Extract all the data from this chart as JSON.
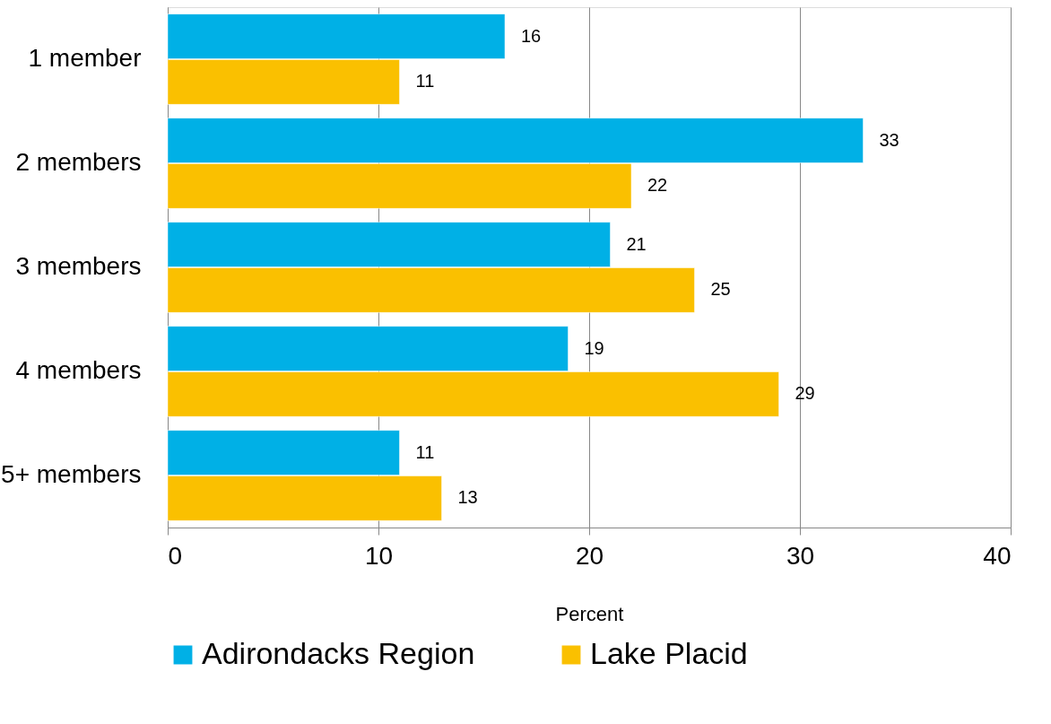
{
  "chart_data": {
    "type": "bar",
    "orientation": "horizontal",
    "xlabel": "Percent",
    "categories": [
      "1 member",
      "2 members",
      "3 members",
      "4 members",
      "5+ members"
    ],
    "series": [
      {
        "name": "Adirondacks Region",
        "color": "#00b0e6",
        "values": [
          16,
          33,
          21,
          19,
          11
        ]
      },
      {
        "name": "Lake Placid",
        "color": "#fac000",
        "values": [
          11,
          22,
          25,
          29,
          13
        ]
      }
    ],
    "xlim": [
      0,
      40
    ],
    "xticks": [
      0,
      10,
      20,
      30,
      40
    ],
    "grid": "x",
    "legend": "bottom",
    "data_labels": true
  }
}
